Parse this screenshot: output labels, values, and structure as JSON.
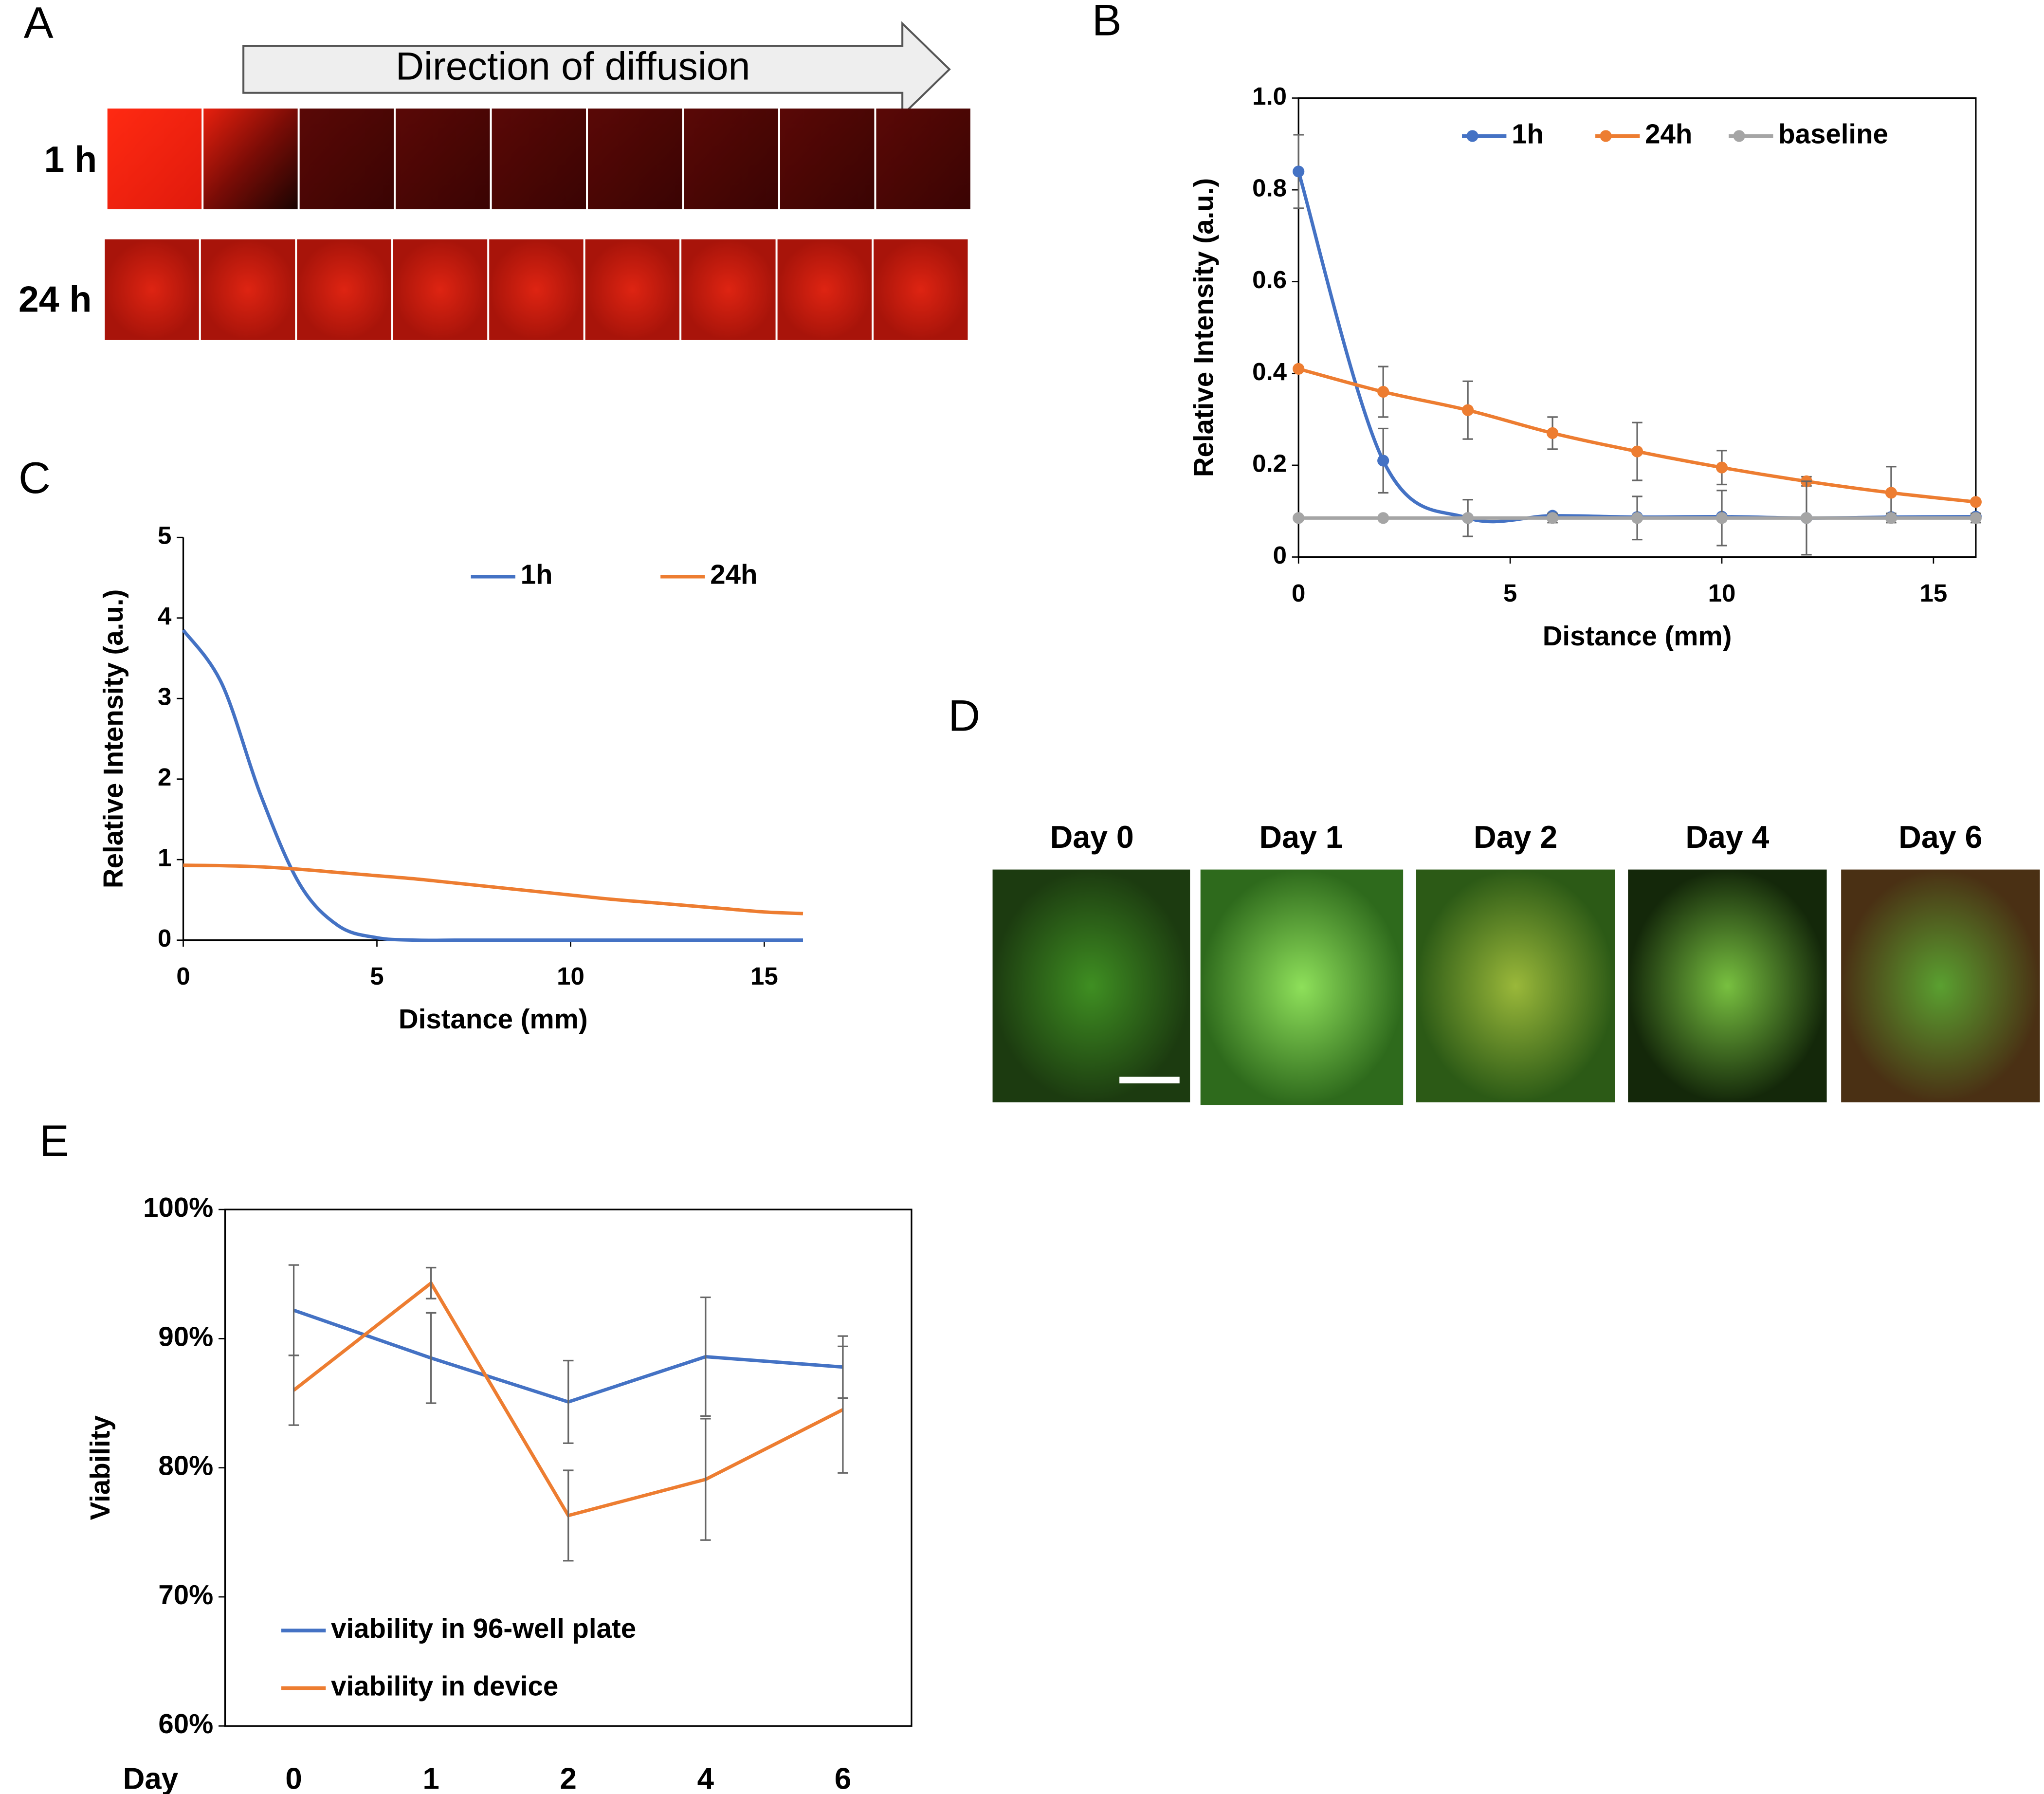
{
  "panel_a": {
    "label": "A",
    "arrow": "Direction of diffusion",
    "rows": [
      "1 h",
      "24 h"
    ]
  },
  "panel_d": {
    "label": "D",
    "days": [
      "Day 0",
      "Day 1",
      "Day 2",
      "Day 4",
      "Day 6"
    ]
  },
  "chart_data": [
    {
      "type": "line",
      "label": "B",
      "smooth": true,
      "markers": true,
      "frame": true,
      "legend": "top",
      "x": [
        0,
        2,
        4,
        6,
        8,
        10,
        12,
        14,
        16
      ],
      "xlim": [
        0,
        16
      ],
      "xticks": [
        0,
        5,
        10,
        15
      ],
      "ylim": [
        0,
        1
      ],
      "yticks": [
        0,
        0.2,
        0.4,
        0.6,
        0.8,
        {
          "value": 1,
          "label": "1.0"
        }
      ],
      "xlabel": "Distance (mm)",
      "ylabel": "Relative Intensity (a.u.)",
      "series": [
        {
          "name": "1h",
          "color": "#4472c4",
          "values": [
            0.84,
            0.21,
            0.085,
            0.09,
            0.087,
            0.088,
            0.085,
            0.087,
            0.088
          ],
          "errors": [
            0.08,
            0.07,
            null,
            null,
            null,
            null,
            null,
            null,
            null
          ]
        },
        {
          "name": "24h",
          "color": "#ed7d31",
          "values": [
            0.41,
            0.36,
            0.32,
            0.27,
            0.23,
            0.195,
            0.165,
            0.14,
            0.12
          ],
          "errors": [
            null,
            0.055,
            0.063,
            0.035,
            0.063,
            0.037,
            0.01,
            0.057,
            null
          ]
        },
        {
          "name": "baseline",
          "color": "#a5a5a5",
          "values": [
            0.085,
            0.085,
            0.085,
            0.085,
            0.085,
            0.085,
            0.085,
            0.085,
            0.085
          ],
          "errors": [
            null,
            null,
            0.04,
            0.01,
            0.047,
            0.06,
            0.08,
            0.01,
            0.01
          ]
        }
      ]
    },
    {
      "type": "line",
      "label": "C",
      "smooth": true,
      "markers": false,
      "frame": false,
      "legend": "top-right",
      "x": [
        0,
        1,
        2,
        3,
        4,
        5,
        6,
        7,
        8,
        9,
        10,
        11,
        12,
        13,
        14,
        15,
        16
      ],
      "xlim": [
        0,
        16
      ],
      "xticks": [
        0,
        5,
        10,
        15
      ],
      "ylim": [
        0,
        5
      ],
      "yticks": [
        0,
        1,
        2,
        3,
        4,
        5
      ],
      "xlabel": "Distance (mm)",
      "ylabel": "Relative Intensity (a.u.)",
      "series": [
        {
          "name": "1h",
          "color": "#4472c4",
          "values": [
            3.85,
            3.18,
            1.8,
            0.7,
            0.18,
            0.03,
            0,
            0,
            0,
            0,
            0,
            0,
            0,
            0,
            0,
            0,
            0
          ]
        },
        {
          "name": "24h",
          "color": "#ed7d31",
          "values": [
            0.93,
            0.925,
            0.91,
            0.88,
            0.84,
            0.8,
            0.76,
            0.71,
            0.66,
            0.61,
            0.56,
            0.51,
            0.47,
            0.43,
            0.39,
            0.35,
            0.33
          ]
        }
      ]
    },
    {
      "type": "line",
      "label": "E",
      "smooth": false,
      "markers": false,
      "frame": true,
      "legend": "bottom-left",
      "categories": [
        "0",
        "1",
        "2",
        "4",
        "6"
      ],
      "xlabel": "Day",
      "ylabel": "Viability",
      "ylim": [
        60,
        100
      ],
      "yticks": [
        {
          "value": 60,
          "label": "60%"
        },
        {
          "value": 70,
          "label": "70%"
        },
        {
          "value": 80,
          "label": "80%"
        },
        {
          "value": 90,
          "label": "90%"
        },
        {
          "value": 100,
          "label": "100%"
        }
      ],
      "series": [
        {
          "name": "viability in 96-well plate",
          "color": "#4472c4",
          "values": [
            92.2,
            88.5,
            85.1,
            88.6,
            87.8
          ],
          "errors": [
            3.5,
            3.5,
            3.2,
            4.6,
            2.4
          ]
        },
        {
          "name": "viability in device",
          "color": "#ed7d31",
          "values": [
            86.0,
            94.3,
            76.3,
            79.1,
            84.5
          ],
          "errors": [
            2.7,
            1.2,
            3.5,
            4.7,
            4.9
          ]
        }
      ]
    }
  ]
}
